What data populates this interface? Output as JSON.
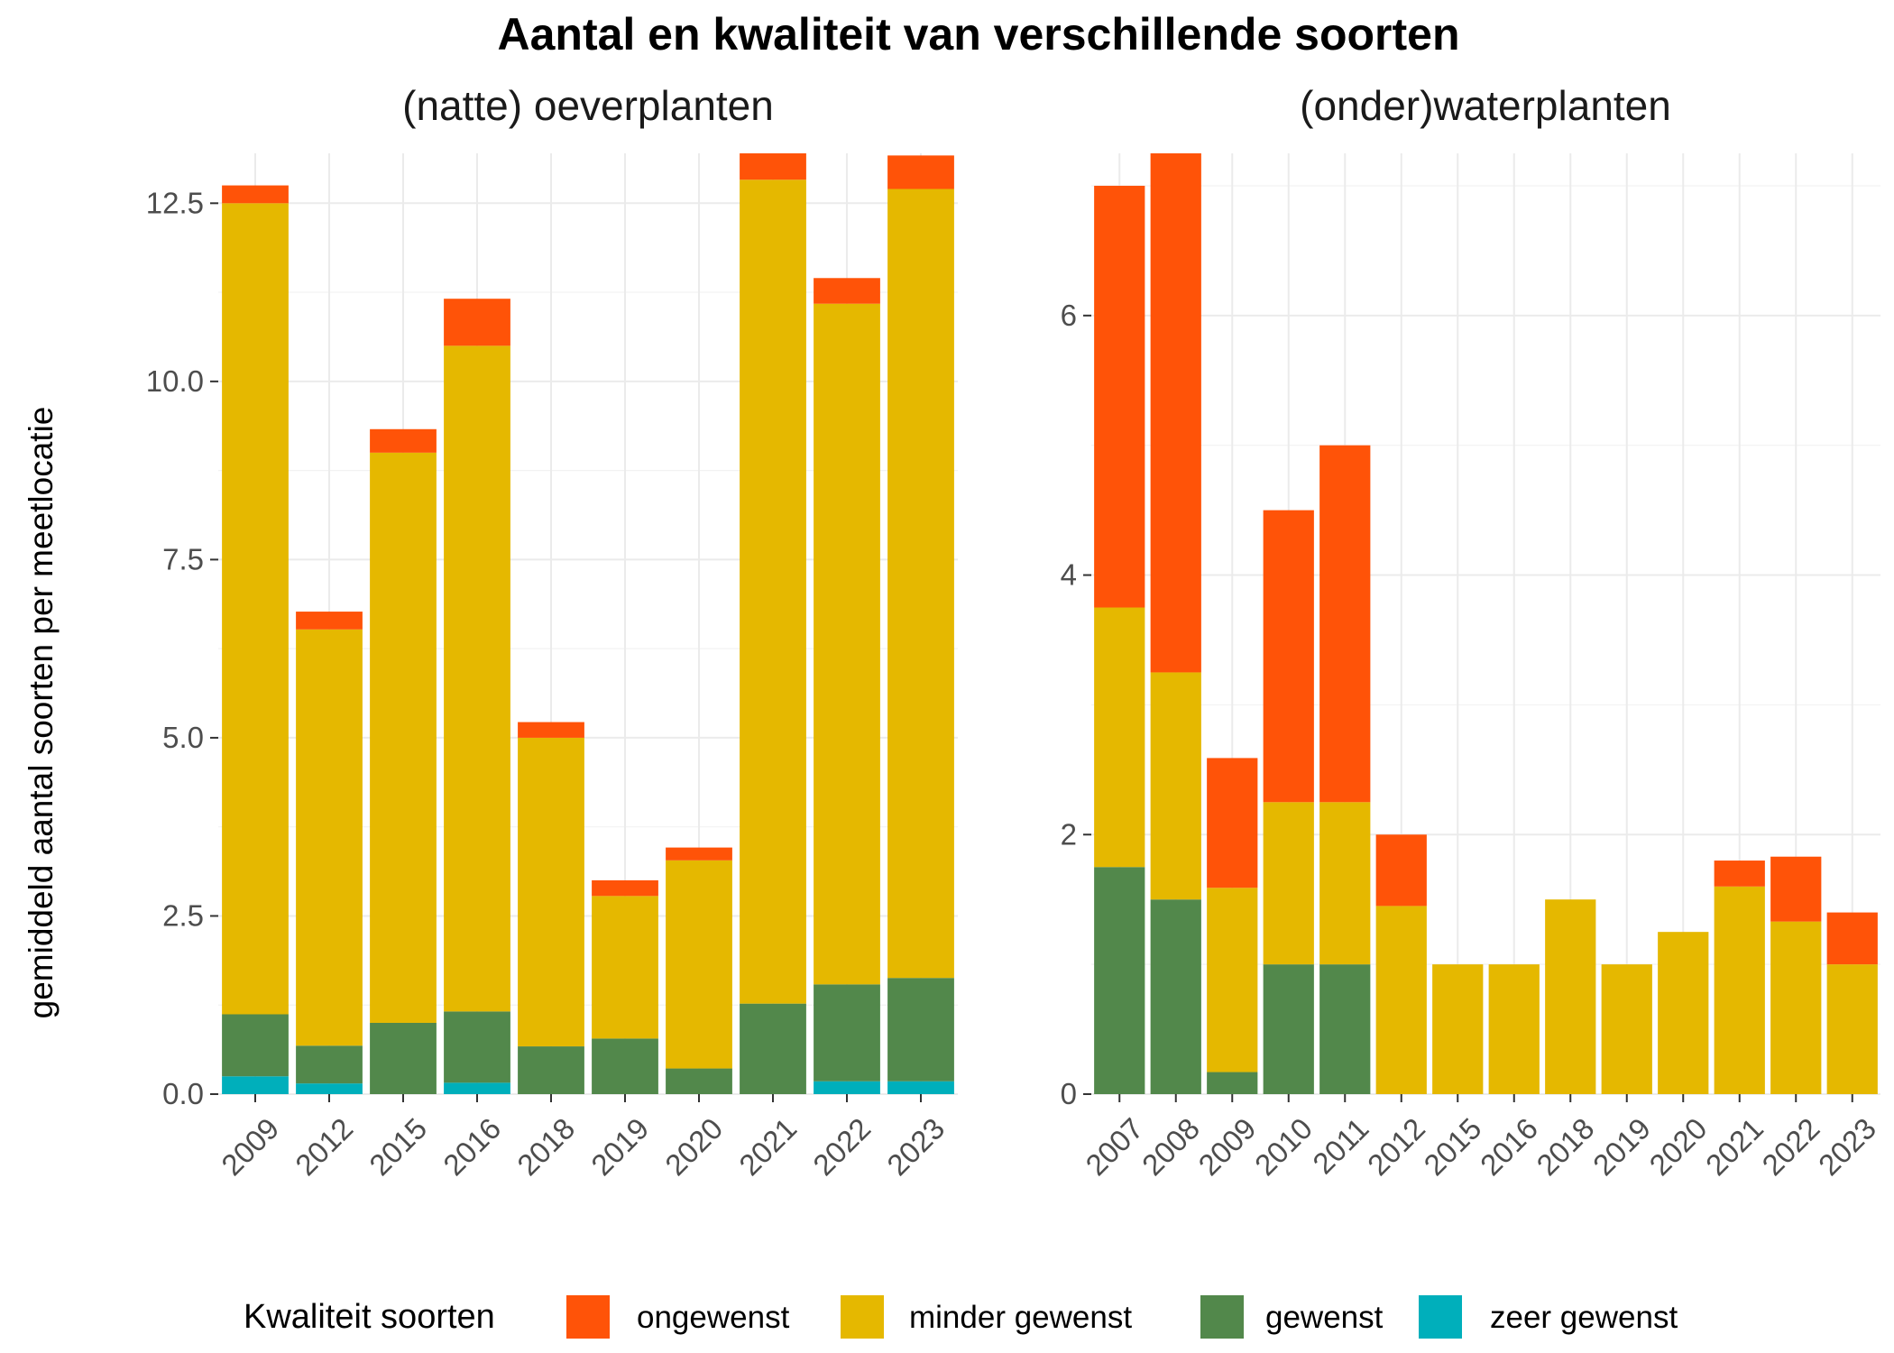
{
  "figure": {
    "title": "Aantal en kwaliteit van verschillende soorten",
    "ylabel": "gemiddeld aantal soorten per meetlocatie",
    "legend_title": "Kwaliteit soorten"
  },
  "colors": {
    "ongewenst": "#FF5308",
    "minder gewenst": "#E5B800",
    "gewenst": "#52884B",
    "zeer gewenst": "#00AFBB"
  },
  "chart_data": [
    {
      "type": "bar",
      "stacked": true,
      "title": "(natte) oeverplanten",
      "ylabel": "gemiddeld aantal soorten per meetlocatie",
      "categories": [
        "2009",
        "2012",
        "2015",
        "2016",
        "2018",
        "2019",
        "2020",
        "2021",
        "2022",
        "2023"
      ],
      "ylim": [
        0,
        13.2
      ],
      "yticks": [
        0,
        2.5,
        5,
        7.5,
        10,
        12.5
      ],
      "ytick_labels": [
        "0.0",
        "2.5",
        "5.0",
        "7.5",
        "10.0",
        "12.5"
      ],
      "series": [
        {
          "name": "zeer gewenst",
          "values": [
            0.25,
            0.15,
            0,
            0.16,
            0,
            0,
            0,
            0,
            0.18,
            0.18
          ]
        },
        {
          "name": "gewenst",
          "values": [
            0.87,
            0.53,
            1.0,
            1.0,
            0.67,
            0.78,
            0.36,
            1.27,
            1.36,
            1.45
          ]
        },
        {
          "name": "minder gewenst",
          "values": [
            11.38,
            5.84,
            8.0,
            9.34,
            4.33,
            2.0,
            2.92,
            11.56,
            9.55,
            11.07
          ]
        },
        {
          "name": "ongewenst",
          "values": [
            0.25,
            0.25,
            0.33,
            0.66,
            0.22,
            0.22,
            0.18,
            0.37,
            0.36,
            0.47
          ]
        }
      ],
      "grid": true
    },
    {
      "type": "bar",
      "stacked": true,
      "title": "(onder)waterplanten",
      "categories": [
        "2007",
        "2008",
        "2009",
        "2010",
        "2011",
        "2012",
        "2015",
        "2016",
        "2018",
        "2019",
        "2020",
        "2021",
        "2022",
        "2023"
      ],
      "ylim": [
        0,
        7.25
      ],
      "yticks": [
        0,
        2,
        4,
        6
      ],
      "ytick_labels": [
        "0",
        "2",
        "4",
        "6"
      ],
      "series": [
        {
          "name": "zeer gewenst",
          "values": [
            0,
            0,
            0,
            0,
            0,
            0,
            0,
            0,
            0,
            0,
            0,
            0,
            0,
            0
          ]
        },
        {
          "name": "gewenst",
          "values": [
            1.75,
            1.5,
            0.17,
            1.0,
            1.0,
            0,
            0,
            0,
            0,
            0,
            0,
            0,
            0,
            0
          ]
        },
        {
          "name": "minder gewenst",
          "values": [
            2.0,
            1.75,
            1.42,
            1.25,
            1.25,
            1.45,
            1.0,
            1.0,
            1.5,
            1.0,
            1.25,
            1.6,
            1.33,
            1.0
          ]
        },
        {
          "name": "ongewenst",
          "values": [
            3.25,
            4.0,
            1.0,
            2.25,
            2.75,
            0.55,
            0,
            0,
            0,
            0,
            0,
            0.2,
            0.5,
            0.4
          ]
        }
      ],
      "grid": true
    }
  ],
  "legend": {
    "placement": "bottom",
    "items": [
      "ongewenst",
      "minder gewenst",
      "gewenst",
      "zeer gewenst"
    ]
  }
}
